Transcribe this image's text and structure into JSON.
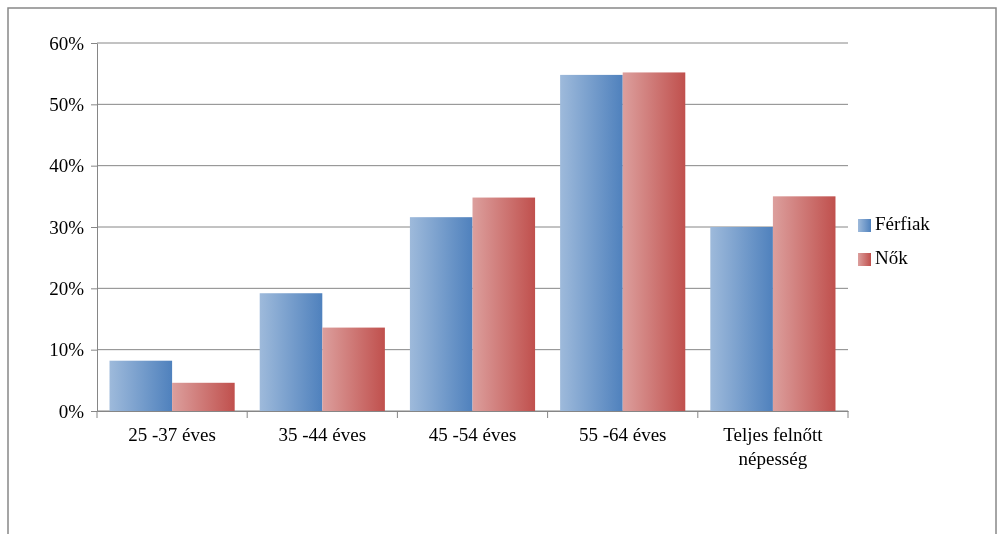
{
  "chart_data": {
    "type": "bar",
    "categories": [
      "25 -37 éves",
      "35 -44 éves",
      "45 -54 éves",
      "55 -64 éves",
      "Teljes felnőtt népesség"
    ],
    "series": [
      {
        "name": "Férfiak",
        "color": "#4f81bd",
        "values": [
          8.2,
          19.2,
          31.6,
          54.8,
          30
        ]
      },
      {
        "name": "Nők",
        "color": "#c0504d",
        "values": [
          4.6,
          13.6,
          34.8,
          55.2,
          35
        ]
      }
    ],
    "ylim": [
      0,
      60
    ],
    "yticks": [
      {
        "value": 0,
        "label": "0%"
      },
      {
        "value": 10,
        "label": "10%"
      },
      {
        "value": 20,
        "label": "20%"
      },
      {
        "value": 30,
        "label": "30%"
      },
      {
        "value": 40,
        "label": "40%"
      },
      {
        "value": 50,
        "label": "50%"
      },
      {
        "value": 60,
        "label": "60%"
      }
    ],
    "grid": "y",
    "legend": "right"
  }
}
